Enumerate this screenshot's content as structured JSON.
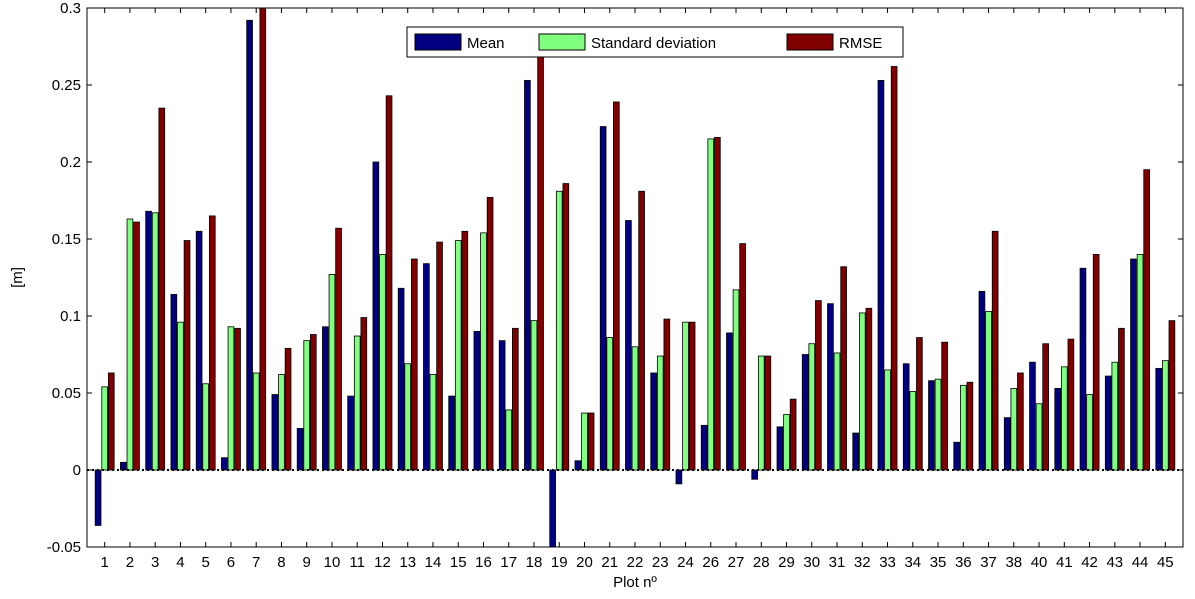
{
  "chart_data": {
    "type": "bar",
    "title": "",
    "xlabel": "Plot nº",
    "ylabel": "[m]",
    "ylim": [
      -0.05,
      0.3
    ],
    "yticks": [
      -0.05,
      0,
      0.05,
      0.1,
      0.15,
      0.2,
      0.25,
      0.3
    ],
    "ytick_labels": [
      "-0.05",
      "0",
      "0.05",
      "0.1",
      "0.15",
      "0.2",
      "0.25",
      "0.3"
    ],
    "grid": false,
    "legend_position": "top-center",
    "zero_line": "dotted",
    "categories": [
      "1",
      "2",
      "3",
      "4",
      "5",
      "6",
      "7",
      "8",
      "9",
      "10",
      "11",
      "12",
      "13",
      "14",
      "15",
      "16",
      "17",
      "18",
      "19",
      "20",
      "21",
      "22",
      "23",
      "24",
      "26",
      "27",
      "28",
      "29",
      "30",
      "31",
      "32",
      "33",
      "34",
      "35",
      "36",
      "37",
      "38",
      "40",
      "41",
      "42",
      "43",
      "44",
      "45"
    ],
    "series": [
      {
        "name": "Mean",
        "color": "#000080",
        "values": [
          -0.036,
          0.005,
          0.168,
          0.114,
          0.155,
          0.008,
          0.292,
          0.049,
          0.027,
          0.093,
          0.048,
          0.2,
          0.118,
          0.134,
          0.048,
          0.09,
          0.084,
          0.253,
          -0.05,
          0.006,
          0.223,
          0.162,
          0.063,
          -0.009,
          0.029,
          0.089,
          -0.006,
          0.028,
          0.075,
          0.108,
          0.024,
          0.253,
          0.069,
          0.058,
          0.018,
          0.116,
          0.034,
          0.07,
          0.053,
          0.131,
          0.061,
          0.137,
          0.066
        ]
      },
      {
        "name": "Standard deviation",
        "color": "#80ff80",
        "values": [
          0.054,
          0.163,
          0.167,
          0.096,
          0.056,
          0.093,
          0.063,
          0.062,
          0.084,
          0.127,
          0.087,
          0.14,
          0.069,
          0.062,
          0.149,
          0.154,
          0.039,
          0.097,
          0.181,
          0.037,
          0.086,
          0.08,
          0.074,
          0.096,
          0.215,
          0.117,
          0.074,
          0.036,
          0.082,
          0.076,
          0.102,
          0.065,
          0.051,
          0.059,
          0.055,
          0.103,
          0.053,
          0.043,
          0.067,
          0.049,
          0.07,
          0.14,
          0.071
        ]
      },
      {
        "name": "RMSE",
        "color": "#800000",
        "values": [
          0.063,
          0.161,
          0.235,
          0.149,
          0.165,
          0.092,
          0.3,
          0.079,
          0.088,
          0.157,
          0.099,
          0.243,
          0.137,
          0.148,
          0.155,
          0.177,
          0.092,
          0.271,
          0.186,
          0.037,
          0.239,
          0.181,
          0.098,
          0.096,
          0.216,
          0.147,
          0.074,
          0.046,
          0.11,
          0.132,
          0.105,
          0.262,
          0.086,
          0.083,
          0.057,
          0.155,
          0.063,
          0.082,
          0.085,
          0.14,
          0.092,
          0.195,
          0.097
        ]
      }
    ]
  }
}
